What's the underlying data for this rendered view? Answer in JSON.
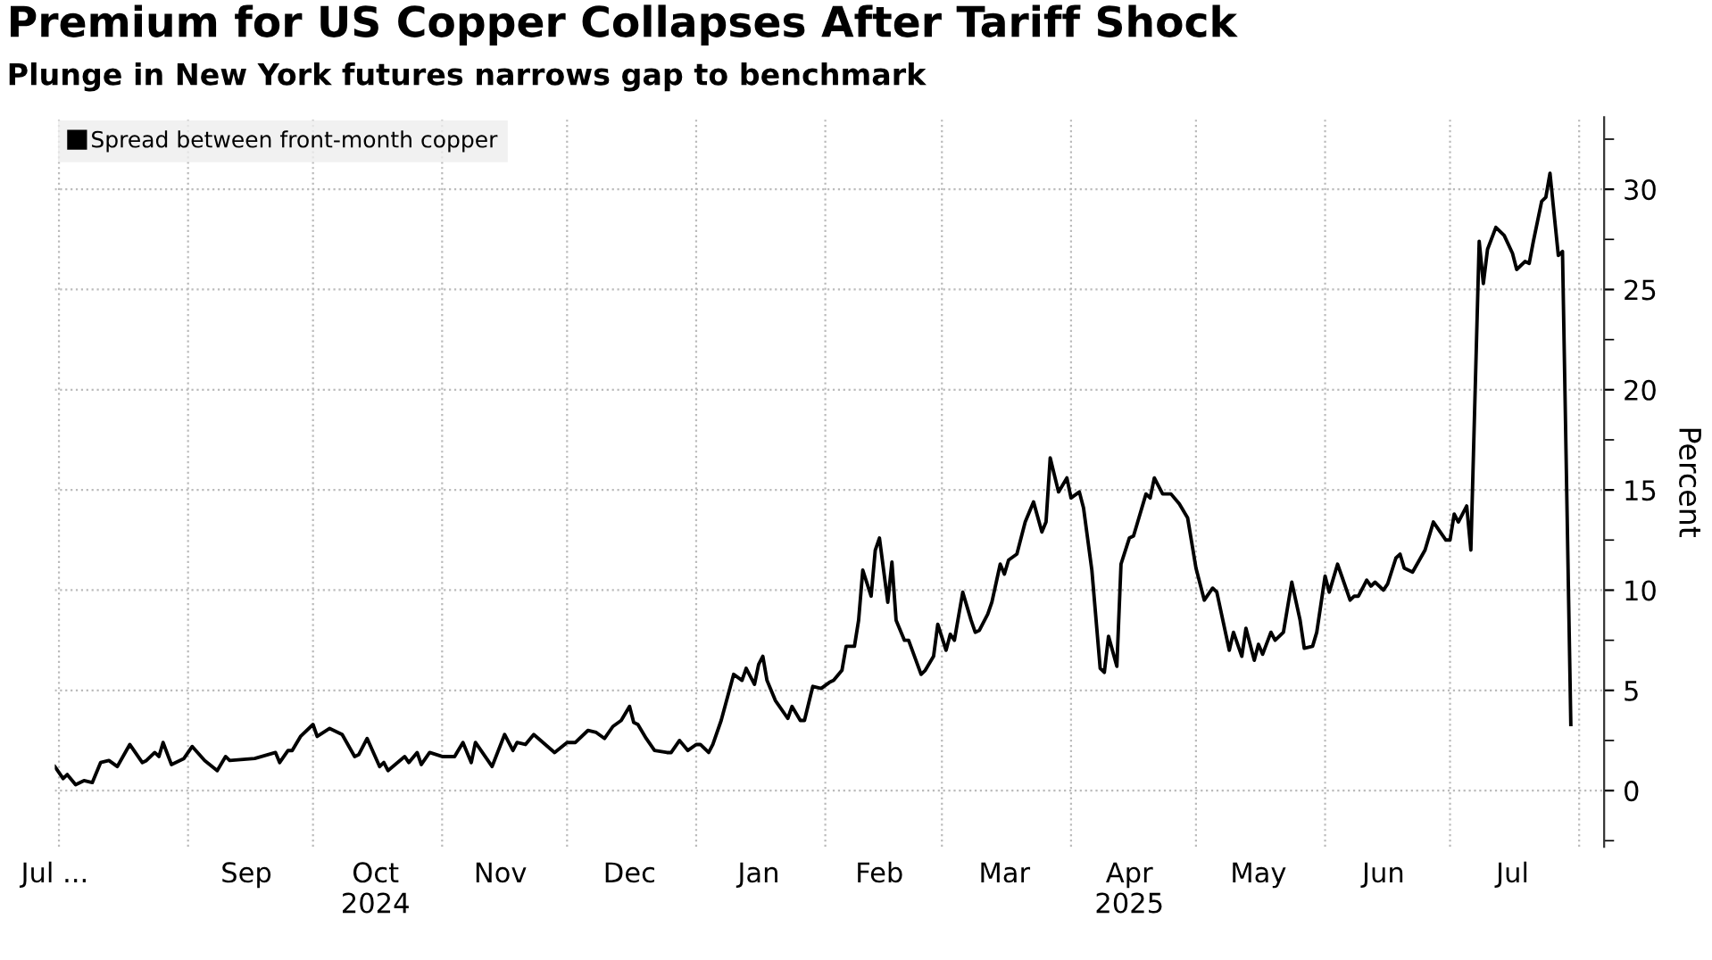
{
  "chart_data": {
    "type": "line",
    "title": "Premium for US Copper Collapses After Tariff Shock",
    "subtitle": "Plunge in New York futures narrows gap to benchmark",
    "ylabel": "Percent",
    "series": [
      {
        "name": "Spread between front-month copper",
        "color": "#000000",
        "x": [
          "2024-07-31",
          "2024-08-02",
          "2024-08-03",
          "2024-08-05",
          "2024-08-07",
          "2024-08-09",
          "2024-08-11",
          "2024-08-13",
          "2024-08-15",
          "2024-08-18",
          "2024-08-21",
          "2024-08-22",
          "2024-08-24",
          "2024-08-25",
          "2024-08-26",
          "2024-08-28",
          "2024-08-31",
          "2024-09-02",
          "2024-09-05",
          "2024-09-08",
          "2024-09-10",
          "2024-09-11",
          "2024-09-17",
          "2024-09-22",
          "2024-09-23",
          "2024-09-25",
          "2024-09-26",
          "2024-09-28",
          "2024-10-01",
          "2024-10-02",
          "2024-10-05",
          "2024-10-08",
          "2024-10-11",
          "2024-10-12",
          "2024-10-14",
          "2024-10-17",
          "2024-10-18",
          "2024-10-19",
          "2024-10-23",
          "2024-10-24",
          "2024-10-26",
          "2024-10-27",
          "2024-10-29",
          "2024-11-01",
          "2024-11-04",
          "2024-11-06",
          "2024-11-08",
          "2024-11-09",
          "2024-11-13",
          "2024-11-16",
          "2024-11-18",
          "2024-11-19",
          "2024-11-21",
          "2024-11-23",
          "2024-11-28",
          "2024-12-01",
          "2024-12-03",
          "2024-12-06",
          "2024-12-08",
          "2024-12-10",
          "2024-12-12",
          "2024-12-14",
          "2024-12-16",
          "2024-12-17",
          "2024-12-18",
          "2024-12-20",
          "2024-12-22",
          "2024-12-25",
          "2024-12-26",
          "2024-12-28",
          "2024-12-30",
          "2025-01-01",
          "2025-01-02",
          "2025-01-04",
          "2025-01-05",
          "2025-01-07",
          "2025-01-10",
          "2025-01-12",
          "2025-01-13",
          "2025-01-15",
          "2025-01-16",
          "2025-01-17",
          "2025-01-18",
          "2025-01-20",
          "2025-01-23",
          "2025-01-24",
          "2025-01-26",
          "2025-01-27",
          "2025-01-29",
          "2025-01-31",
          "2025-02-02",
          "2025-02-03",
          "2025-02-05",
          "2025-02-06",
          "2025-02-08",
          "2025-02-09",
          "2025-02-10",
          "2025-02-12",
          "2025-02-13",
          "2025-02-14",
          "2025-02-16",
          "2025-02-17",
          "2025-02-18",
          "2025-02-20",
          "2025-02-21",
          "2025-02-24",
          "2025-02-25",
          "2025-02-27",
          "2025-02-28",
          "2025-03-02",
          "2025-03-03",
          "2025-03-04",
          "2025-03-06",
          "2025-03-08",
          "2025-03-09",
          "2025-03-10",
          "2025-03-12",
          "2025-03-13",
          "2025-03-15",
          "2025-03-16",
          "2025-03-17",
          "2025-03-19",
          "2025-03-21",
          "2025-03-23",
          "2025-03-25",
          "2025-03-26",
          "2025-03-27",
          "2025-03-29",
          "2025-03-31",
          "2025-04-01",
          "2025-04-03",
          "2025-04-04",
          "2025-04-06",
          "2025-04-08",
          "2025-04-09",
          "2025-04-10",
          "2025-04-12",
          "2025-04-13",
          "2025-04-15",
          "2025-04-16",
          "2025-04-19",
          "2025-04-20",
          "2025-04-21",
          "2025-04-23",
          "2025-04-25",
          "2025-04-27",
          "2025-04-29",
          "2025-05-01",
          "2025-05-03",
          "2025-05-05",
          "2025-05-06",
          "2025-05-09",
          "2025-05-10",
          "2025-05-12",
          "2025-05-13",
          "2025-05-15",
          "2025-05-16",
          "2025-05-17",
          "2025-05-19",
          "2025-05-20",
          "2025-05-22",
          "2025-05-24",
          "2025-05-26",
          "2025-05-27",
          "2025-05-29",
          "2025-05-30",
          "2025-06-01",
          "2025-06-02",
          "2025-06-04",
          "2025-06-05",
          "2025-06-07",
          "2025-06-08",
          "2025-06-09",
          "2025-06-11",
          "2025-06-12",
          "2025-06-13",
          "2025-06-15",
          "2025-06-16",
          "2025-06-18",
          "2025-06-19",
          "2025-06-20",
          "2025-06-22",
          "2025-06-25",
          "2025-06-27",
          "2025-06-30",
          "2025-07-01",
          "2025-07-02",
          "2025-07-03",
          "2025-07-05",
          "2025-07-06",
          "2025-07-08",
          "2025-07-09",
          "2025-07-10",
          "2025-07-12",
          "2025-07-14",
          "2025-07-16",
          "2025-07-17",
          "2025-07-19",
          "2025-07-20",
          "2025-07-21",
          "2025-07-23",
          "2025-07-24",
          "2025-07-25",
          "2025-07-27",
          "2025-07-28",
          "2025-07-30"
        ],
        "values": [
          1.2,
          0.6,
          0.8,
          0.3,
          0.5,
          0.4,
          1.4,
          1.5,
          1.2,
          2.3,
          1.4,
          1.5,
          1.9,
          1.7,
          2.4,
          1.3,
          1.6,
          2.2,
          1.5,
          1.0,
          1.7,
          1.5,
          1.6,
          1.9,
          1.4,
          2.0,
          2.0,
          2.7,
          3.3,
          2.7,
          3.1,
          2.8,
          1.7,
          1.8,
          2.6,
          1.2,
          1.4,
          1.0,
          1.7,
          1.4,
          1.9,
          1.3,
          1.9,
          1.7,
          1.7,
          2.4,
          1.4,
          2.4,
          1.2,
          2.8,
          2.0,
          2.4,
          2.3,
          2.8,
          1.9,
          2.4,
          2.4,
          3.0,
          2.9,
          2.6,
          3.2,
          3.5,
          4.2,
          3.4,
          3.3,
          2.6,
          2.0,
          1.9,
          1.9,
          2.5,
          2.0,
          2.3,
          2.3,
          1.9,
          2.3,
          3.5,
          5.8,
          5.5,
          6.1,
          5.3,
          6.3,
          6.7,
          5.5,
          4.5,
          3.6,
          4.2,
          3.5,
          3.5,
          5.2,
          5.1,
          5.4,
          5.5,
          6.0,
          7.2,
          7.2,
          8.5,
          11.0,
          9.7,
          12.0,
          12.6,
          9.4,
          11.4,
          8.5,
          7.5,
          7.5,
          5.8,
          6.0,
          6.7,
          8.3,
          7.0,
          7.8,
          7.5,
          9.9,
          8.5,
          7.9,
          8.0,
          8.8,
          9.4,
          11.3,
          10.8,
          11.5,
          11.8,
          13.4,
          14.4,
          12.9,
          13.4,
          16.6,
          14.9,
          15.6,
          14.6,
          14.9,
          14.1,
          11.0,
          6.1,
          5.9,
          7.7,
          6.2,
          11.3,
          12.6,
          12.7,
          14.8,
          14.6,
          15.6,
          14.8,
          14.8,
          14.3,
          13.6,
          11.1,
          9.5,
          10.1,
          9.9,
          7.0,
          7.9,
          6.7,
          8.1,
          6.5,
          7.3,
          6.8,
          7.9,
          7.5,
          7.9,
          10.4,
          8.5,
          7.1,
          7.2,
          7.9,
          10.7,
          9.9,
          11.3,
          10.7,
          9.5,
          9.7,
          9.7,
          10.5,
          10.2,
          10.4,
          10.0,
          10.3,
          11.6,
          11.8,
          11.1,
          10.9,
          12.0,
          13.4,
          12.5,
          12.5,
          13.8,
          13.4,
          14.2,
          12.0,
          27.4,
          25.3,
          27.0,
          28.1,
          27.7,
          26.8,
          26.0,
          26.4,
          26.3,
          27.4,
          29.4,
          29.6,
          30.8,
          26.7,
          26.9,
          3.3
        ]
      }
    ],
    "xlim": [
      "2024-07-31",
      "2025-08-07"
    ],
    "xticks": [
      {
        "value": "2024-08-01",
        "label": null
      },
      {
        "value": "2024-09-01",
        "label": null
      },
      {
        "value": "2024-10-01",
        "label": null
      },
      {
        "value": "2024-11-01",
        "label": null
      },
      {
        "value": "2024-12-01",
        "label": null
      },
      {
        "value": "2025-01-01",
        "label": null
      },
      {
        "value": "2025-02-01",
        "label": null
      },
      {
        "value": "2025-03-01",
        "label": null
      },
      {
        "value": "2025-04-01",
        "label": null
      },
      {
        "value": "2025-05-01",
        "label": null
      },
      {
        "value": "2025-06-01",
        "label": null
      },
      {
        "value": "2025-07-01",
        "label": null
      },
      {
        "value": "2025-08-01",
        "label": null
      },
      {
        "value": "2024-07-31",
        "label": "Jul ..."
      },
      {
        "value": "2024-09-15",
        "label": "Sep"
      },
      {
        "value": "2024-10-16",
        "label": "Oct\n2024"
      },
      {
        "value": "2024-11-15",
        "label": "Nov"
      },
      {
        "value": "2024-12-16",
        "label": "Dec"
      },
      {
        "value": "2025-01-16",
        "label": "Jan"
      },
      {
        "value": "2025-02-14",
        "label": "Feb"
      },
      {
        "value": "2025-03-16",
        "label": "Mar"
      },
      {
        "value": "2025-04-15",
        "label": "Apr\n2025"
      },
      {
        "value": "2025-05-16",
        "label": "May"
      },
      {
        "value": "2025-06-15",
        "label": "Jun"
      },
      {
        "value": "2025-07-16",
        "label": "Jul"
      }
    ],
    "ylim": [
      -2.8,
      33.6
    ],
    "yticks": [
      0,
      5,
      10,
      15,
      20,
      25,
      30,
      {
        "value": -2.5,
        "label": null
      },
      {
        "value": 2.5,
        "label": null
      },
      {
        "value": 7.5,
        "label": null
      },
      {
        "value": 12.5,
        "label": null
      },
      {
        "value": 17.5,
        "label": null
      },
      {
        "value": 22.5,
        "label": null
      },
      {
        "value": 27.5,
        "label": null
      },
      {
        "value": 32.5,
        "label": null
      }
    ],
    "grid": true,
    "legend": "top left",
    "marker": "none",
    "line_style": "solid"
  }
}
